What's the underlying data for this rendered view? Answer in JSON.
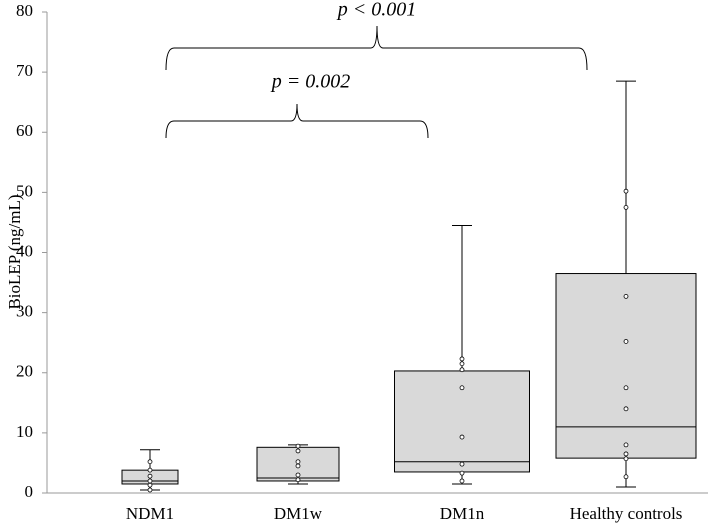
{
  "chart_data": {
    "type": "box",
    "y_label": "BioLEP (ng/mL)",
    "categories": [
      "NDM1",
      "DM1w",
      "DM1n",
      "Healthy controls"
    ],
    "color": "#d9d9d9",
    "boxes": [
      {
        "min": 0.5,
        "q1": 1.5,
        "median": 2,
        "q3": 3.8,
        "max": 7.2,
        "points": [
          0.5,
          1.3,
          2,
          2.8,
          3.8,
          5.2
        ]
      },
      {
        "min": 1.5,
        "q1": 2,
        "median": 2.5,
        "q3": 7.6,
        "max": 8,
        "points": [
          2.2,
          3,
          4.5,
          5.2,
          7,
          7.8
        ]
      },
      {
        "min": 1.5,
        "q1": 3.5,
        "median": 5.2,
        "q3": 20.3,
        "max": 44.5,
        "points": [
          2,
          3.3,
          4.8,
          9.3,
          17.5,
          20.5,
          21.5,
          22.3
        ]
      },
      {
        "min": 1,
        "q1": 5.8,
        "median": 11,
        "q3": 36.5,
        "max": 68.5,
        "points": [
          2.7,
          5.7,
          6.5,
          8,
          14,
          17.5,
          25.2,
          32.7,
          47.5,
          50.2
        ]
      }
    ],
    "annotations": [
      "p < 0.001",
      "p = 0.002"
    ],
    "ylim": [
      0,
      80
    ],
    "yticks": [
      0,
      10,
      20,
      30,
      40,
      50,
      60,
      70,
      80
    ],
    "grid": false
  }
}
